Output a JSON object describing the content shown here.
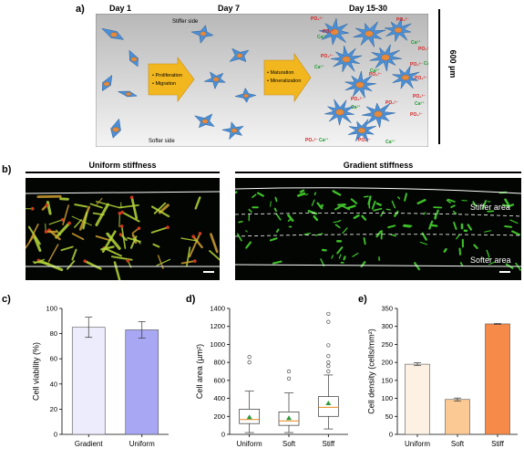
{
  "panel_a": {
    "label": "a)",
    "days": [
      "Day 1",
      "Day 7",
      "Day 15-30"
    ],
    "stiffer_side": "Stiffer side",
    "softer_side": "Softer side",
    "arrow1": [
      "Proliferation",
      "Migration"
    ],
    "arrow2": [
      "Maturation",
      "Mineralization"
    ],
    "scale": "600 µm",
    "ion_ca": "Ca²⁺",
    "ion_po": "PO₄³⁻",
    "colors": {
      "cell": "#4b8fd6",
      "nucleus": "#e88a3c",
      "arrow": "#f2b71e",
      "ca": "#1e9a2e",
      "po": "#d42020"
    }
  },
  "panel_b": {
    "label": "b)",
    "uniform_title": "Uniform stiffness",
    "gradient_title": "Gradient stiffness",
    "stiffer_area": "Stiffer area",
    "softer_area": "Softer area"
  },
  "panel_c": {
    "label": "c)",
    "chart_data": {
      "type": "bar",
      "categories": [
        "Gradient",
        "Uniform"
      ],
      "values": [
        85,
        83
      ],
      "errors": [
        8,
        6.5
      ],
      "ylabel": "Cell viability (%)",
      "ylim": [
        0,
        100
      ],
      "yticks": [
        0,
        20,
        40,
        60,
        80,
        100
      ],
      "colors": [
        "#ececfc",
        "#a7a7f4"
      ]
    }
  },
  "panel_d": {
    "label": "d)",
    "chart_data": {
      "type": "box",
      "categories": [
        "Uniform",
        "Soft",
        "Stiff"
      ],
      "boxes": [
        {
          "whislo": 20,
          "q1": 120,
          "med": 165,
          "q3": 280,
          "whishi": 480,
          "mean": 190,
          "fliers": [
            800,
            860
          ]
        },
        {
          "whislo": 20,
          "q1": 100,
          "med": 150,
          "q3": 250,
          "whishi": 460,
          "mean": 180,
          "fliers": [
            620,
            700
          ]
        },
        {
          "whislo": 60,
          "q1": 200,
          "med": 300,
          "q3": 420,
          "whishi": 660,
          "mean": 345,
          "fliers": [
            700,
            760,
            800,
            870,
            990,
            1250,
            1340
          ]
        }
      ],
      "ylabel": "Cell area (µm²)",
      "ylim": [
        0,
        1400
      ],
      "yticks": [
        0,
        200,
        400,
        600,
        800,
        1000,
        1200,
        1400
      ]
    }
  },
  "panel_e": {
    "label": "e)",
    "chart_data": {
      "type": "bar",
      "categories": [
        "Uniform",
        "Soft",
        "Stiff"
      ],
      "values": [
        195,
        97,
        307
      ],
      "errors": [
        4,
        4,
        1
      ],
      "ylabel": "Cell density (cells/mm²)",
      "ylim": [
        0,
        350
      ],
      "yticks": [
        0,
        50,
        100,
        150,
        200,
        250,
        300,
        350
      ],
      "colors": [
        "#fdf1e3",
        "#fbc994",
        "#f68a48"
      ]
    }
  }
}
